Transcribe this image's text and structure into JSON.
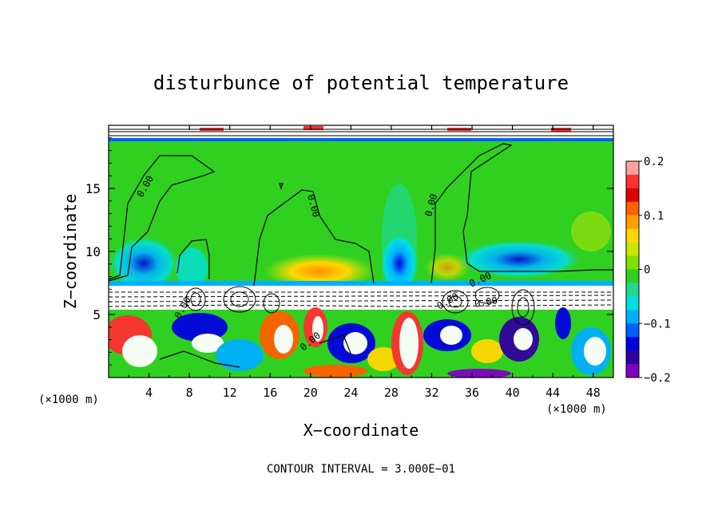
{
  "chart_data": {
    "type": "heatmap",
    "title": "disturbunce of potential temperature",
    "xlabel": "X−coordinate",
    "ylabel": "Z−coordinate",
    "x_unit": "(×1000 m)",
    "x_unit_right": "(×1000 m)",
    "footer": "CONTOUR INTERVAL = 3.000E−01",
    "x_ticks": [
      4,
      8,
      12,
      16,
      20,
      24,
      28,
      32,
      36,
      40,
      44,
      48
    ],
    "y_ticks": [
      5,
      10,
      15
    ],
    "xlim": [
      0,
      50
    ],
    "ylim": [
      0,
      20
    ],
    "contour_labels": [
      "0.00",
      "0.00",
      "0.00",
      "0.00",
      "0.00",
      "0.00",
      "0.00",
      "0.00"
    ],
    "colorbar": {
      "ticks": [
        {
          "value": 0.2,
          "label": "0.2"
        },
        {
          "value": 0.1,
          "label": "0.1"
        },
        {
          "value": 0.0,
          "label": "0"
        },
        {
          "value": -0.1,
          "label": "−0.1"
        },
        {
          "value": -0.2,
          "label": "−0.2"
        }
      ],
      "range": [
        -0.2,
        0.2
      ],
      "colors": [
        "#ffa0a0",
        "#ff3030",
        "#e00000",
        "#ff6000",
        "#ffa000",
        "#ffd800",
        "#c8e600",
        "#80e000",
        "#30d020",
        "#20d890",
        "#00e0e0",
        "#00b0ff",
        "#0060ff",
        "#0000e0",
        "#3000a0",
        "#8000c0"
      ]
    }
  }
}
